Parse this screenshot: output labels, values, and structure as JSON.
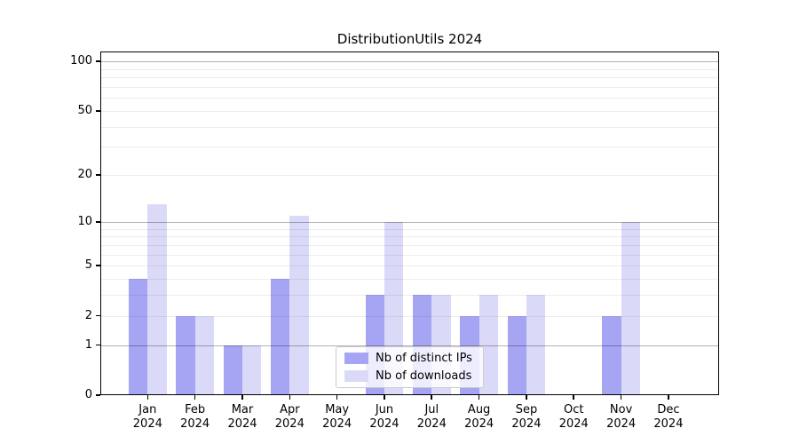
{
  "chart_data": {
    "type": "bar",
    "title": "DistributionUtils 2024",
    "categories": [
      "Jan",
      "Feb",
      "Mar",
      "Apr",
      "May",
      "Jun",
      "Jul",
      "Aug",
      "Sep",
      "Oct",
      "Nov",
      "Dec"
    ],
    "category_year_label": "2024",
    "series": [
      {
        "name": "Nb of distinct IPs",
        "color": "#a5a5f3",
        "values": [
          4,
          2,
          1,
          4,
          0,
          3,
          3,
          2,
          2,
          0,
          2,
          0
        ]
      },
      {
        "name": "Nb of downloads",
        "color": "#dadaf8",
        "values": [
          13,
          2,
          1,
          11,
          0,
          10,
          3,
          3,
          3,
          0,
          10,
          0
        ]
      }
    ],
    "y_scale": "log1p",
    "ylim": [
      0,
      115
    ],
    "y_ticks": [
      0,
      1,
      2,
      5,
      10,
      20,
      50,
      100
    ],
    "y_major_gridlines": [
      1,
      10,
      100
    ],
    "y_minor_gridlines": [
      2,
      3,
      4,
      5,
      6,
      7,
      8,
      9,
      20,
      30,
      40,
      50,
      60,
      70,
      80,
      90
    ],
    "grid": true,
    "legend_position": "lower-center",
    "background_color": "#ffffff",
    "axis_color": "#000000"
  }
}
